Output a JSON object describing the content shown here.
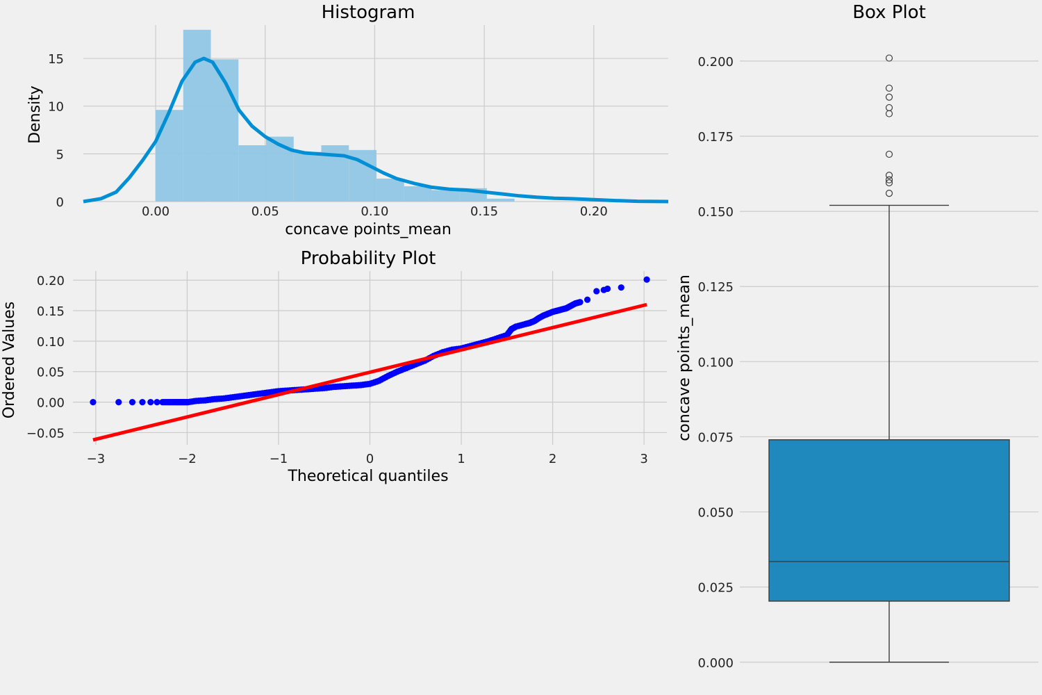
{
  "colors": {
    "background": "#f0f0f0",
    "grid": "#cbcbcb",
    "hist_bar": "#8fc6e4",
    "kde": "#008fd5",
    "qq_points": "#0000ff",
    "qq_line": "#ff0000",
    "box_fill": "#1f88bd",
    "box_edge": "#3b3b3b"
  },
  "chart_data": [
    {
      "type": "bar",
      "subtype": "histogram_with_kde",
      "title": "Histogram",
      "xlabel": "concave points_mean",
      "ylabel": "Density",
      "xlim": [
        -0.033,
        0.234
      ],
      "ylim": [
        0,
        18.5
      ],
      "xticks": [
        0.0,
        0.05,
        0.1,
        0.15,
        0.2
      ],
      "xtick_labels": [
        "0.00",
        "0.05",
        "0.10",
        "0.15",
        "0.20"
      ],
      "yticks": [
        0,
        5,
        10,
        15
      ],
      "ytick_labels": [
        "0",
        "5",
        "10",
        "15"
      ],
      "grid": true,
      "bins": [
        {
          "x0": 0.0,
          "x1": 0.0126,
          "density": 9.6
        },
        {
          "x0": 0.0126,
          "x1": 0.0252,
          "density": 18.0
        },
        {
          "x0": 0.0252,
          "x1": 0.0378,
          "density": 14.9
        },
        {
          "x0": 0.0378,
          "x1": 0.0504,
          "density": 5.9
        },
        {
          "x0": 0.0504,
          "x1": 0.063,
          "density": 6.8
        },
        {
          "x0": 0.063,
          "x1": 0.0756,
          "density": 5.2
        },
        {
          "x0": 0.0756,
          "x1": 0.0882,
          "density": 5.9
        },
        {
          "x0": 0.0882,
          "x1": 0.1008,
          "density": 5.4
        },
        {
          "x0": 0.1008,
          "x1": 0.1134,
          "density": 2.4
        },
        {
          "x0": 0.1134,
          "x1": 0.126,
          "density": 1.6
        },
        {
          "x0": 0.126,
          "x1": 0.1386,
          "density": 1.2
        },
        {
          "x0": 0.1386,
          "x1": 0.1512,
          "density": 1.4
        },
        {
          "x0": 0.1512,
          "x1": 0.1638,
          "density": 0.3
        },
        {
          "x0": 0.1638,
          "x1": 0.1764,
          "density": 0.0
        },
        {
          "x0": 0.1764,
          "x1": 0.189,
          "density": 0.0
        },
        {
          "x0": 0.189,
          "x1": 0.2016,
          "density": 0.0
        }
      ],
      "kde": {
        "x": [
          -0.033,
          -0.025,
          -0.018,
          -0.012,
          -0.006,
          0.0,
          0.006,
          0.012,
          0.018,
          0.022,
          0.026,
          0.032,
          0.038,
          0.044,
          0.05,
          0.056,
          0.062,
          0.068,
          0.074,
          0.08,
          0.086,
          0.092,
          0.098,
          0.104,
          0.11,
          0.118,
          0.126,
          0.134,
          0.142,
          0.15,
          0.158,
          0.166,
          0.174,
          0.182,
          0.19,
          0.2,
          0.21,
          0.22,
          0.234
        ],
        "y": [
          0.0,
          0.3,
          1.0,
          2.5,
          4.3,
          6.3,
          9.3,
          12.6,
          14.6,
          15.0,
          14.6,
          12.4,
          9.6,
          7.9,
          6.8,
          6.0,
          5.4,
          5.1,
          5.0,
          4.9,
          4.8,
          4.4,
          3.7,
          3.0,
          2.4,
          1.9,
          1.5,
          1.3,
          1.2,
          1.0,
          0.8,
          0.6,
          0.45,
          0.35,
          0.3,
          0.2,
          0.1,
          0.03,
          0.0
        ]
      }
    },
    {
      "type": "scatter",
      "subtype": "probability_plot",
      "title": "Probability Plot",
      "xlabel": "Theoretical quantiles",
      "ylabel": "Ordered Values",
      "xlim": [
        -3.25,
        3.25
      ],
      "ylim": [
        -0.07,
        0.215
      ],
      "xticks": [
        -3,
        -2,
        -1,
        0,
        1,
        2,
        3
      ],
      "xtick_labels": [
        "−3",
        "−2",
        "−1",
        "0",
        "1",
        "2",
        "3"
      ],
      "yticks": [
        -0.05,
        0.0,
        0.05,
        0.1,
        0.15,
        0.2
      ],
      "ytick_labels": [
        "−0.05",
        "0.00",
        "0.05",
        "0.10",
        "0.15",
        "0.20"
      ],
      "grid": true,
      "points_x": [
        -3.03,
        -2.75,
        -2.6,
        -2.49,
        -2.4,
        -2.33,
        -2.27,
        -2.21,
        -2.16,
        -2.11,
        -2.07,
        -2.03,
        -1.99,
        -1.9,
        -1.8,
        -1.7,
        -1.6,
        -1.5,
        -1.4,
        -1.3,
        -1.2,
        -1.1,
        -1.0,
        -0.9,
        -0.8,
        -0.7,
        -0.6,
        -0.5,
        -0.4,
        -0.3,
        -0.2,
        -0.1,
        0.0,
        0.1,
        0.2,
        0.3,
        0.4,
        0.5,
        0.6,
        0.7,
        0.8,
        0.9,
        1.0,
        1.1,
        1.2,
        1.3,
        1.4,
        1.5,
        1.55,
        1.6,
        1.7,
        1.75,
        1.8,
        1.85,
        1.9,
        1.95,
        2.0,
        2.05,
        2.1,
        2.15,
        2.2,
        2.25,
        2.3,
        2.38,
        2.48,
        2.56,
        2.6,
        2.75,
        3.03
      ],
      "points_y": [
        0.0,
        0.0,
        0.0,
        0.0,
        0.0,
        0.0,
        0.0,
        0.0,
        0.0,
        0.0,
        0.0,
        0.0,
        0.0,
        0.002,
        0.003,
        0.005,
        0.006,
        0.008,
        0.01,
        0.012,
        0.014,
        0.016,
        0.018,
        0.019,
        0.02,
        0.021,
        0.022,
        0.023,
        0.025,
        0.026,
        0.027,
        0.028,
        0.03,
        0.035,
        0.043,
        0.05,
        0.056,
        0.062,
        0.068,
        0.076,
        0.082,
        0.086,
        0.088,
        0.092,
        0.096,
        0.1,
        0.105,
        0.11,
        0.12,
        0.124,
        0.128,
        0.13,
        0.133,
        0.138,
        0.142,
        0.145,
        0.148,
        0.15,
        0.152,
        0.154,
        0.158,
        0.162,
        0.164,
        0.168,
        0.182,
        0.184,
        0.186,
        0.188,
        0.201
      ],
      "fit_line": {
        "x": [
          -3.03,
          3.03
        ],
        "y": [
          -0.062,
          0.16
        ]
      }
    },
    {
      "type": "box",
      "title": "Box Plot",
      "ylabel": "concave points_mean",
      "ylim": [
        -0.01,
        0.212
      ],
      "yticks": [
        0.0,
        0.025,
        0.05,
        0.075,
        0.1,
        0.125,
        0.15,
        0.175,
        0.2
      ],
      "ytick_labels": [
        "0.000",
        "0.025",
        "0.050",
        "0.075",
        "0.100",
        "0.125",
        "0.150",
        "0.175",
        "0.200"
      ],
      "grid": true,
      "whisker_low": 0.0,
      "q1": 0.0203,
      "median": 0.0335,
      "q3": 0.074,
      "whisker_high": 0.152,
      "outliers": [
        0.201,
        0.191,
        0.188,
        0.1845,
        0.1825,
        0.169,
        0.162,
        0.1605,
        0.1595,
        0.156
      ]
    }
  ]
}
